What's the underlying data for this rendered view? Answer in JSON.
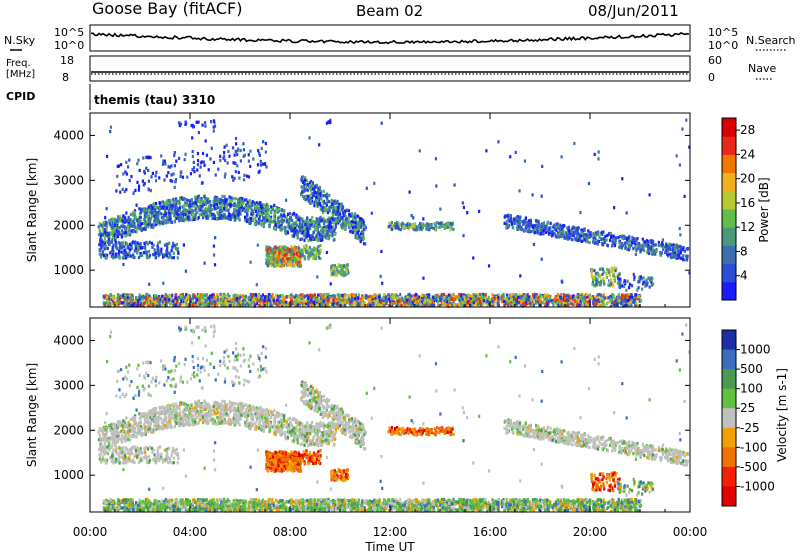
{
  "header": {
    "station": "Goose Bay (fitACF)",
    "beam": "Beam 02",
    "date": "08/Jun/2011"
  },
  "top_panels": {
    "noise": {
      "left_label": "N.Sky",
      "left_ticks": [
        "10^5",
        "10^0"
      ],
      "right_label": "N.Search",
      "right_ticks": [
        "10^5",
        "10^0"
      ]
    },
    "freq": {
      "left_label_line1": "Freq.",
      "left_label_line2": "[MHz]",
      "left_ticks": [
        "18",
        "8"
      ],
      "right_label": "Nave",
      "right_ticks": [
        "60",
        "0"
      ]
    },
    "cpid": {
      "label": "CPID",
      "text": "themis (tau) 3310"
    }
  },
  "colors": {
    "power": [
      "#1a1aff",
      "#2a4fd6",
      "#3c6fb0",
      "#4a9a78",
      "#5fbf4a",
      "#b8c830",
      "#f0b020",
      "#f07800",
      "#e82818",
      "#d80000"
    ],
    "velocity_scale": [
      {
        "label": "1000",
        "color": "#1a2ea8"
      },
      {
        "label": "500",
        "color": "#3a6fc0"
      },
      {
        "label": "100",
        "color": "#4a9a50"
      },
      {
        "label": "25",
        "color": "#60c040"
      },
      {
        "label": "-25",
        "color": "#c0c0c0"
      },
      {
        "label": "-100",
        "color": "#f0a000"
      },
      {
        "label": "-500",
        "color": "#f07000"
      },
      {
        "label": "-1000",
        "color": "#f02000"
      }
    ],
    "velocity_bottom": "#e00000",
    "ground": "#c0c0c0"
  },
  "chart_data": [
    {
      "type": "heatmap",
      "name": "power",
      "ylabel": "Slant Range [km]",
      "ylim": [
        180,
        4500
      ],
      "yticks": [
        "1000",
        "2000",
        "3000",
        "4000"
      ],
      "colorbar_label": "Power [dB]",
      "colorbar_ticks": [
        "4",
        "8",
        "12",
        "16",
        "20",
        "24",
        "28"
      ],
      "clim": [
        0,
        30
      ]
    },
    {
      "type": "heatmap",
      "name": "velocity",
      "ylabel": "Slant Range [km]",
      "ylim": [
        180,
        4500
      ],
      "yticks": [
        "1000",
        "2000",
        "3000",
        "4000"
      ],
      "colorbar_label": "Velocity [m s-1]",
      "colorbar_ticks": [
        "1000",
        "500",
        "100",
        "25",
        "-25",
        "-100",
        "-500",
        "-1000"
      ]
    }
  ],
  "time_axis": {
    "xlabel": "Time UT",
    "ticks": [
      "00:00",
      "04:00",
      "08:00",
      "12:00",
      "16:00",
      "20:00",
      "00:00"
    ]
  }
}
